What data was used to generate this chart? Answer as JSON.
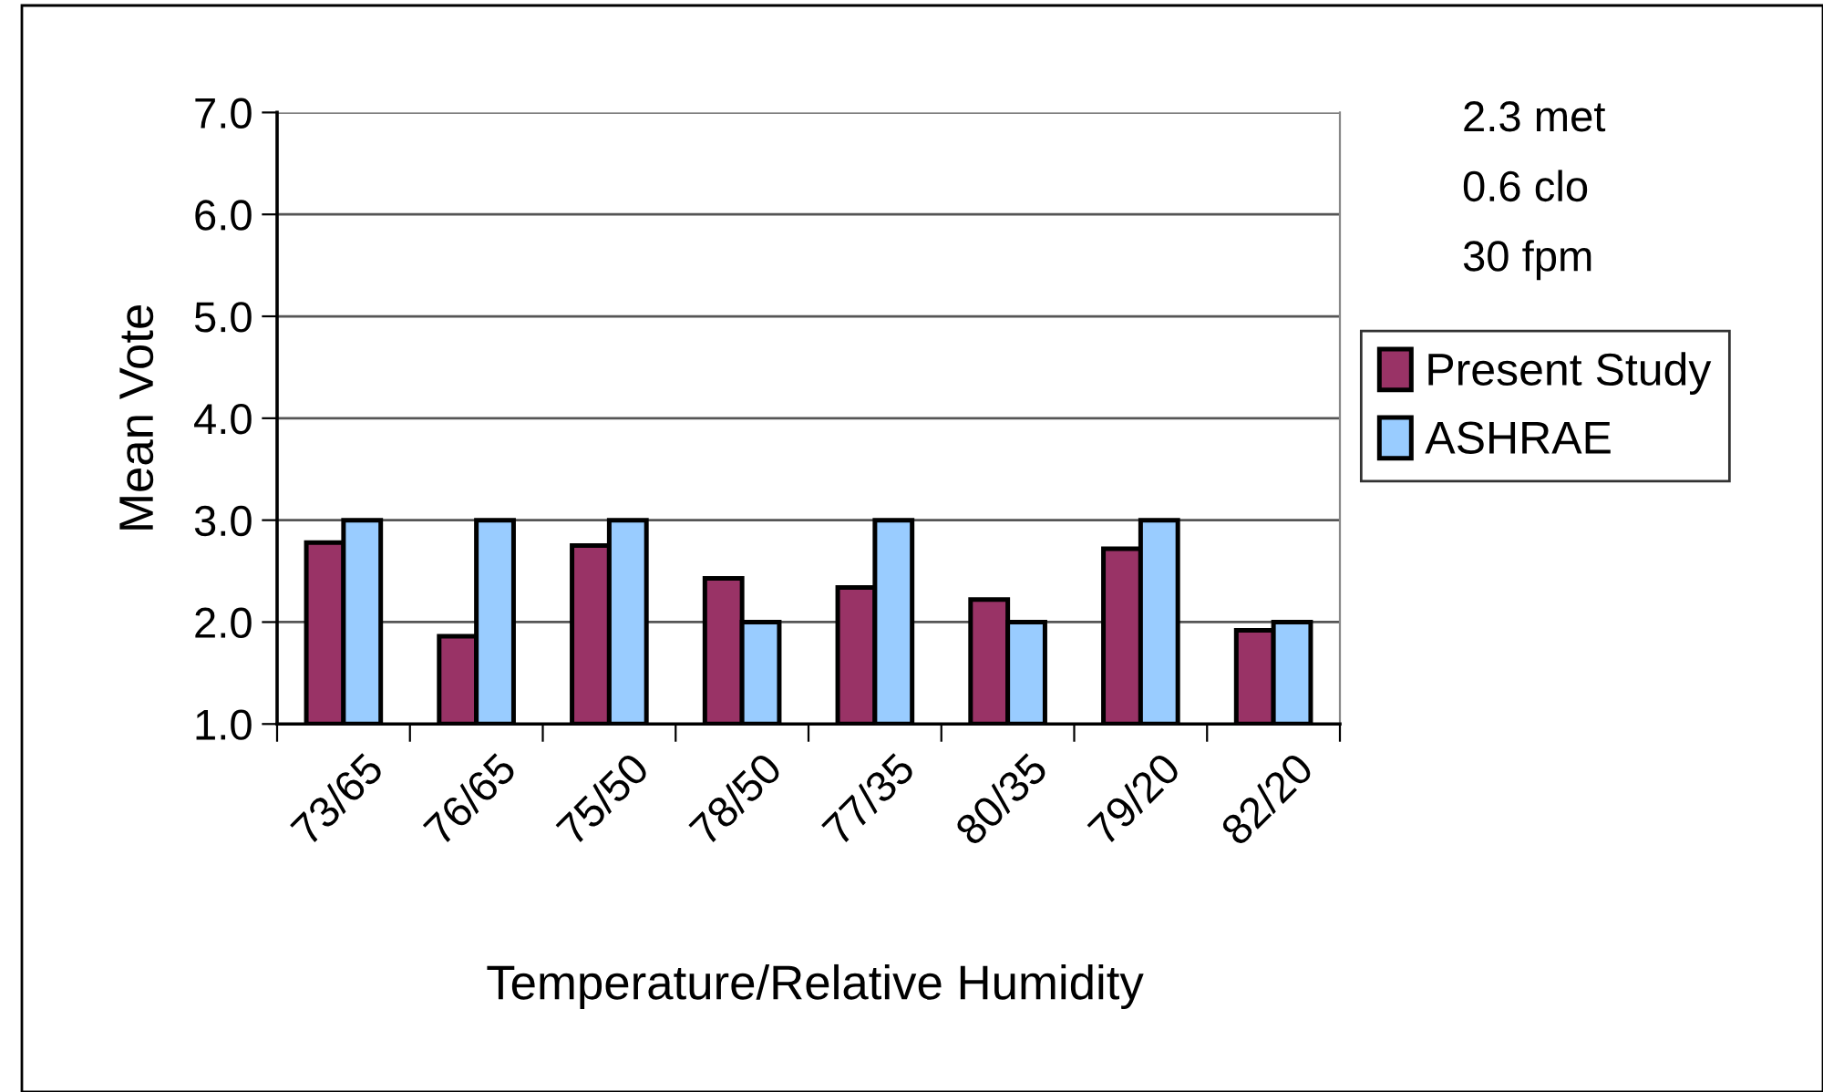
{
  "chart_data": {
    "type": "bar",
    "xlabel": "Temperature/Relative Humidity",
    "ylabel": "Mean Vote",
    "categories": [
      "73/65",
      "76/65",
      "75/50",
      "78/50",
      "77/35",
      "80/35",
      "79/20",
      "82/20"
    ],
    "series": [
      {
        "name": "Present Study",
        "color": "#993366",
        "values": [
          2.78,
          1.86,
          2.75,
          2.43,
          2.34,
          2.22,
          2.72,
          1.92
        ]
      },
      {
        "name": "ASHRAE",
        "color": "#99ccff",
        "values": [
          3.0,
          3.0,
          3.0,
          2.0,
          3.0,
          2.0,
          3.0,
          2.0
        ]
      }
    ],
    "ylim": [
      1.0,
      7.0
    ],
    "yticks": [
      {
        "value": 1,
        "label": "1.0"
      },
      {
        "value": 2,
        "label": "2.0"
      },
      {
        "value": 3,
        "label": "3.0"
      },
      {
        "value": 4,
        "label": "4.0"
      },
      {
        "value": 5,
        "label": "5.0"
      },
      {
        "value": 6,
        "label": "6.0"
      },
      {
        "value": 7,
        "label": "7.0"
      }
    ],
    "grid": "y",
    "legend": "right",
    "annotations": [
      "2.3 met",
      "0.6 clo",
      "30 fpm"
    ]
  }
}
